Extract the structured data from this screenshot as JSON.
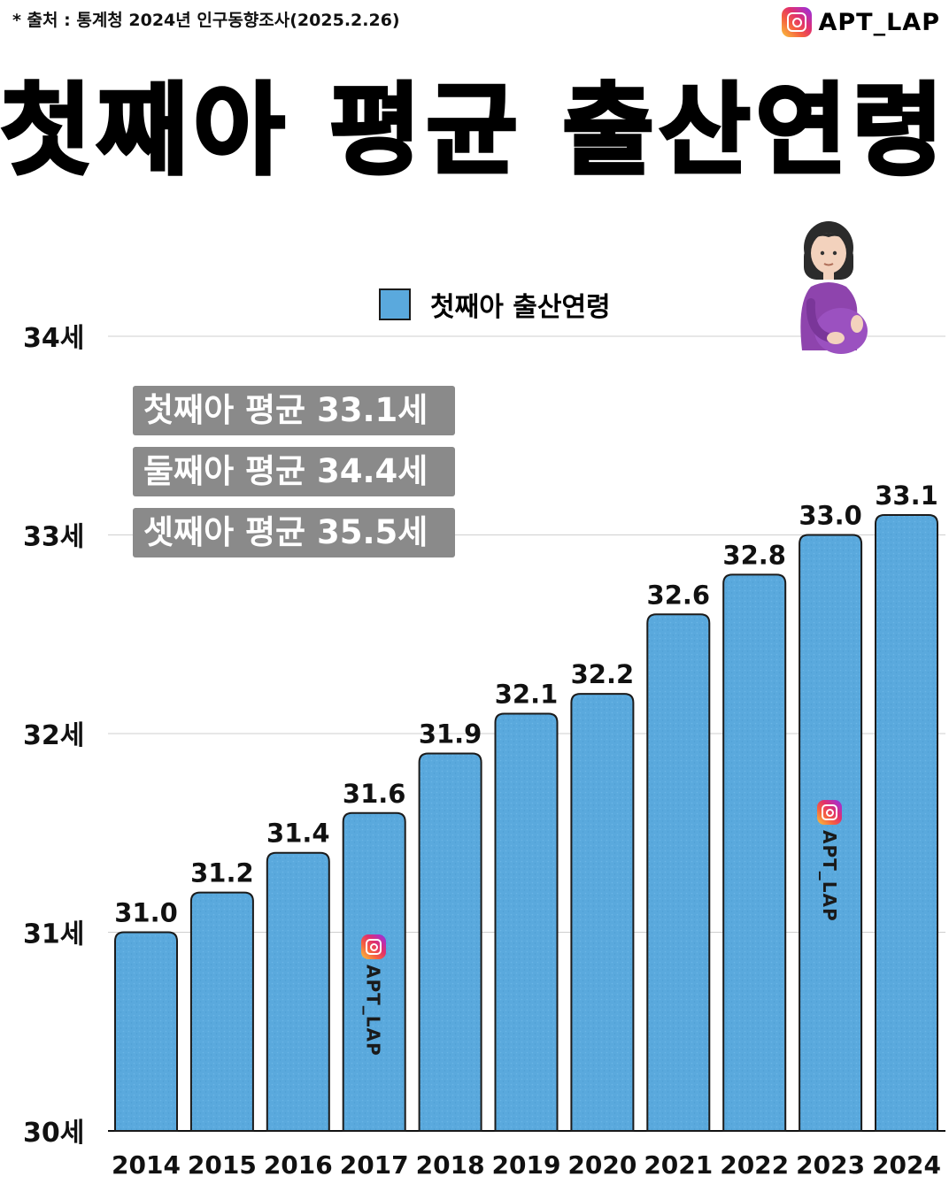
{
  "source": "* 출처 : 통계청 2024년 인구동향조사(2025.2.26)",
  "brand": {
    "name": "APT_LAP",
    "icon": "instagram-icon"
  },
  "title": "첫째아 평균 출산연령",
  "illustration": "pregnant-woman-emoji",
  "averages": [
    "첫째아 평균 33.1세",
    "둘째아 평균 34.4세",
    "셋째아 평균 35.5세"
  ],
  "colors": {
    "bar": "#5aa9dd",
    "bar_border": "#1b1b1b",
    "label_box": "#8a8a8a"
  },
  "chart_data": {
    "type": "bar",
    "categories": [
      "2014",
      "2015",
      "2016",
      "2017",
      "2018",
      "2019",
      "2020",
      "2021",
      "2022",
      "2023",
      "2024"
    ],
    "series": [
      {
        "name": "첫째아 출산연령",
        "values": [
          31.0,
          31.2,
          31.4,
          31.6,
          31.9,
          32.1,
          32.2,
          32.6,
          32.8,
          33.0,
          33.1
        ]
      }
    ],
    "data_labels": [
      "31.0",
      "31.2",
      "31.4",
      "31.6",
      "31.9",
      "32.1",
      "32.2",
      "32.6",
      "32.8",
      "33.0",
      "33.1"
    ],
    "ylim": [
      30,
      34
    ],
    "yticks": [
      30,
      31,
      32,
      33,
      34
    ],
    "ytick_labels": [
      "30세",
      "31세",
      "32세",
      "33세",
      "34세"
    ],
    "grid": true,
    "legend_position": "top-center",
    "title": "첫째아 평균 출산연령",
    "xlabel": "",
    "ylabel": ""
  },
  "watermarks": [
    {
      "category": "2017",
      "text": "APT_LAP"
    },
    {
      "category": "2023",
      "text": "APT_LAP"
    }
  ]
}
